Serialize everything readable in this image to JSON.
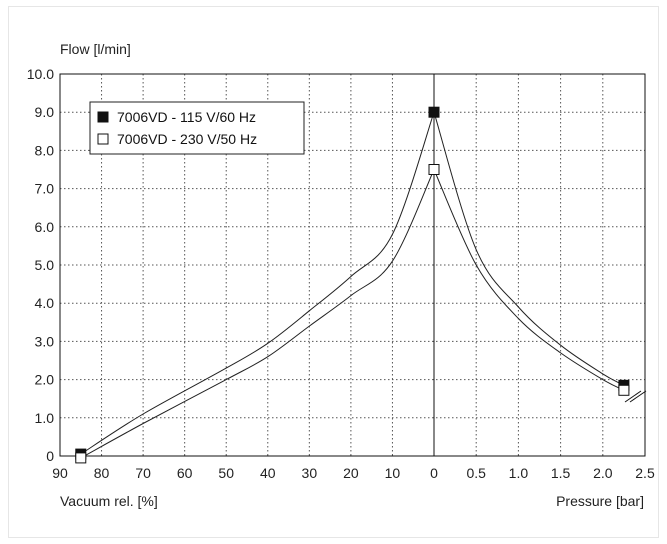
{
  "chart_data": {
    "type": "line",
    "ylabel": "Flow [l/min]",
    "xlabel_left": "Vacuum rel. [%]",
    "xlabel_right": "Pressure [bar]",
    "y_ticks": [
      "10.0",
      "9.0",
      "8.0",
      "7.0",
      "6.0",
      "5.0",
      "4.0",
      "3.0",
      "2.0",
      "1.0",
      "0"
    ],
    "ylim": [
      0,
      10
    ],
    "x_ticks_vacuum": [
      "90",
      "80",
      "70",
      "60",
      "50",
      "40",
      "30",
      "20",
      "10",
      "0"
    ],
    "x_ticks_pressure": [
      "0.5",
      "1.0",
      "1.5",
      "2.0",
      "2.5"
    ],
    "xlim_vacuum": [
      90,
      0
    ],
    "xlim_pressure": [
      0,
      2.5
    ],
    "grid": true,
    "legend_position": "top-left",
    "series": [
      {
        "name": "7006VD - 115 V/60 Hz",
        "marker": "filled-square",
        "vacuum": {
          "x": [
            85,
            70,
            50,
            40,
            30,
            20,
            10,
            0
          ],
          "y": [
            0.05,
            1.1,
            2.3,
            2.95,
            3.8,
            4.7,
            5.8,
            9.0
          ]
        },
        "pressure": {
          "x": [
            0,
            0.5,
            1.0,
            1.5,
            2.0,
            2.25
          ],
          "y": [
            9.0,
            5.4,
            3.9,
            2.9,
            2.15,
            1.85
          ]
        }
      },
      {
        "name": "7006VD - 230 V/50 Hz",
        "marker": "open-square",
        "vacuum": {
          "x": [
            85,
            70,
            50,
            40,
            30,
            20,
            10,
            0
          ],
          "y": [
            -0.05,
            0.85,
            2.0,
            2.6,
            3.4,
            4.2,
            5.1,
            7.5
          ]
        },
        "pressure": {
          "x": [
            0,
            0.5,
            1.0,
            1.5,
            2.0,
            2.25
          ],
          "y": [
            7.5,
            5.0,
            3.6,
            2.7,
            2.0,
            1.72
          ]
        }
      }
    ]
  }
}
